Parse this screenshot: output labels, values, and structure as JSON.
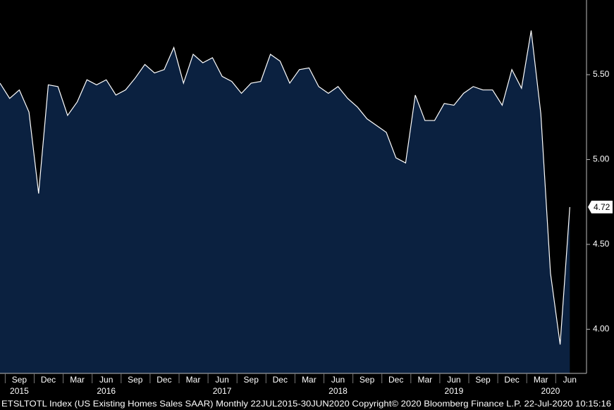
{
  "chart_data": {
    "type": "area",
    "footer": "ETSLTOTL Index (US Existing Homes Sales SAAR)  Monthly 22JUL2015-30JUN2020  Copyright© 2020 Bloomberg Finance L.P.  22-Jul-2020 10:15:16",
    "categories": [
      null,
      null,
      "Sep",
      null,
      null,
      "Dec",
      null,
      null,
      "Mar",
      null,
      null,
      "Jun",
      null,
      null,
      "Sep",
      null,
      null,
      "Dec",
      null,
      null,
      "Mar",
      null,
      null,
      "Jun",
      null,
      null,
      "Sep",
      null,
      null,
      "Dec",
      null,
      null,
      "Mar",
      null,
      null,
      "Jun",
      null,
      null,
      "Sep",
      null,
      null,
      "Dec",
      null,
      null,
      "Mar",
      null,
      null,
      "Jun",
      null,
      null,
      "Sep",
      null,
      null,
      "Dec",
      null,
      null,
      "Mar",
      null,
      null,
      "Jun"
    ],
    "year_labels": [
      null,
      null,
      "2015",
      null,
      null,
      null,
      null,
      null,
      null,
      null,
      null,
      "2016",
      null,
      null,
      null,
      null,
      null,
      null,
      null,
      null,
      null,
      null,
      null,
      "2017",
      null,
      null,
      null,
      null,
      null,
      null,
      null,
      null,
      null,
      null,
      null,
      "2018",
      null,
      null,
      null,
      null,
      null,
      null,
      null,
      null,
      null,
      null,
      null,
      "2019",
      null,
      null,
      null,
      null,
      null,
      null,
      null,
      null,
      null,
      "2020",
      null,
      null
    ],
    "values": [
      5.45,
      5.36,
      5.41,
      5.28,
      4.8,
      5.44,
      5.43,
      5.26,
      5.34,
      5.47,
      5.44,
      5.47,
      5.38,
      5.41,
      5.48,
      5.56,
      5.51,
      5.53,
      5.66,
      5.45,
      5.62,
      5.57,
      5.6,
      5.49,
      5.46,
      5.39,
      5.45,
      5.46,
      5.62,
      5.58,
      5.45,
      5.53,
      5.54,
      5.43,
      5.39,
      5.43,
      5.36,
      5.31,
      5.24,
      5.2,
      5.16,
      5.01,
      4.98,
      5.38,
      5.23,
      5.23,
      5.33,
      5.32,
      5.39,
      5.43,
      5.41,
      5.41,
      5.32,
      5.53,
      5.42,
      5.76,
      5.27,
      4.33,
      3.91,
      4.72
    ],
    "color": "#0b2140",
    "line_color": "#ffffff",
    "ylim": [
      3.74,
      5.94
    ],
    "yticks": [
      {
        "value": 4.0,
        "label": "4.00"
      },
      {
        "value": 4.5,
        "label": "4.50"
      },
      {
        "value": 5.0,
        "label": "5.00"
      },
      {
        "value": 5.5,
        "label": "5.50"
      }
    ]
  }
}
